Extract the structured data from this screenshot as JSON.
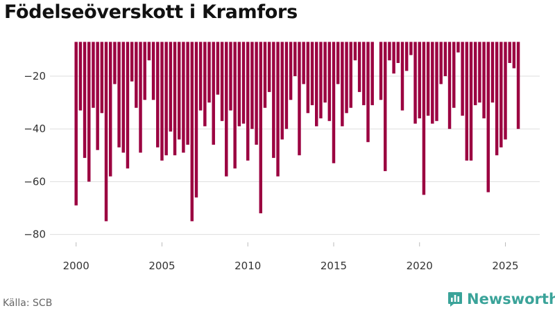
{
  "page": {
    "title": "Födelseöverskott i Kramfors",
    "source": "Källa: SCB",
    "brand": "Newsworthy",
    "brand_icon": "newsworthy-bar-chart-logo-icon"
  },
  "colors": {
    "bar": "#9b0040",
    "grid": "#dddddd",
    "axis_text": "#333333",
    "brand": "#3aa399"
  },
  "chart_data": {
    "type": "bar",
    "title": "Födelseöverskott i Kramfors",
    "xlabel": "",
    "ylabel": "",
    "bar_top": -7,
    "x_range": [
      1998.8,
      2027.0
    ],
    "ylim": [
      -83,
      -7
    ],
    "x_ticks": [
      2000,
      2005,
      2010,
      2015,
      2020,
      2025
    ],
    "x_tick_labels": [
      "2000",
      "2005",
      "2010",
      "2015",
      "2020",
      "2025"
    ],
    "y_ticks": [
      -20,
      -40,
      -60,
      -80
    ],
    "y_tick_labels": [
      "−20",
      "−40",
      "−60",
      "−80"
    ],
    "grid": true,
    "legend": "none",
    "period_start": "2000-01",
    "period_step": "month",
    "x_step": 0.25,
    "values": [
      -69,
      -33,
      -51,
      -60,
      -32,
      -48,
      -34,
      -75,
      -58,
      -23,
      -47,
      -49,
      -55,
      -22,
      -32,
      -49,
      -29,
      -14,
      -29,
      -47,
      -52,
      -50,
      -41,
      -50,
      -44,
      -49,
      -46,
      -75,
      -66,
      -33,
      -39,
      -30,
      -46,
      -27,
      -37,
      -58,
      -33,
      -55,
      -39,
      -38,
      -52,
      -40,
      -46,
      -72,
      -32,
      -26,
      -51,
      -58,
      -44,
      -40,
      -29,
      -20,
      -50,
      -23,
      -34,
      -31,
      -39,
      -36,
      -30,
      -37,
      -53,
      -23,
      -39,
      -34,
      -32,
      -14,
      -26,
      -31,
      -45,
      -31,
      null,
      -29,
      -56,
      -14,
      -19,
      -15,
      -33,
      -18,
      -12,
      -38,
      -36,
      -65,
      -35,
      -38,
      -37,
      -23,
      -20,
      -40,
      -32,
      -11,
      -35,
      -52,
      -52,
      -31,
      -30,
      -36,
      -64,
      -30,
      -50,
      -47,
      -44,
      -15,
      -17,
      -40
    ]
  }
}
